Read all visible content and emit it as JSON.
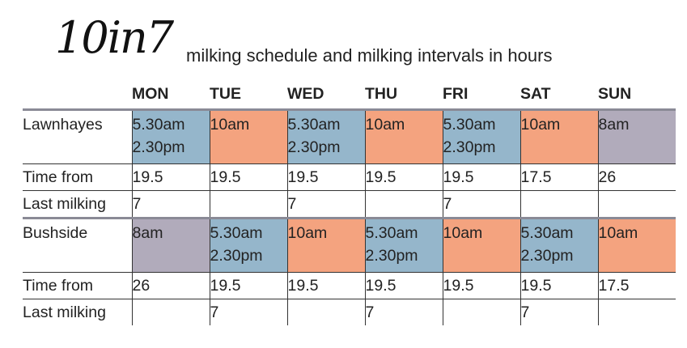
{
  "title": {
    "script": "10in7",
    "subtitle": "milking schedule and milking intervals in hours"
  },
  "days": [
    "MON",
    "TUE",
    "WED",
    "THU",
    "FRI",
    "SAT",
    "SUN"
  ],
  "farms": [
    {
      "name": "Lawnhayes",
      "schedule": [
        {
          "lines": [
            "5.30am",
            "2.30pm"
          ],
          "color": "#95b6cb"
        },
        {
          "lines": [
            "10am"
          ],
          "color": "#f4a37f"
        },
        {
          "lines": [
            "5.30am",
            "2.30pm"
          ],
          "color": "#95b6cb"
        },
        {
          "lines": [
            "10am"
          ],
          "color": "#f4a37f"
        },
        {
          "lines": [
            "5.30am",
            "2.30pm"
          ],
          "color": "#95b6cb"
        },
        {
          "lines": [
            "10am"
          ],
          "color": "#f4a37f"
        },
        {
          "lines": [
            "8am"
          ],
          "color": "#b1abbb"
        }
      ],
      "time_from_label": "Time from",
      "time_from": [
        "19.5",
        "19.5",
        "19.5",
        "19.5",
        "19.5",
        "17.5",
        "26"
      ],
      "last_milking_label": "Last milking",
      "last_milking": [
        "7",
        "",
        "7",
        "",
        "7",
        "",
        ""
      ]
    },
    {
      "name": "Bushside",
      "schedule": [
        {
          "lines": [
            "8am"
          ],
          "color": "#b1abbb"
        },
        {
          "lines": [
            "5.30am",
            "2.30pm"
          ],
          "color": "#95b6cb"
        },
        {
          "lines": [
            "10am"
          ],
          "color": "#f4a37f"
        },
        {
          "lines": [
            "5.30am",
            "2.30pm"
          ],
          "color": "#95b6cb"
        },
        {
          "lines": [
            "10am"
          ],
          "color": "#f4a37f"
        },
        {
          "lines": [
            "5.30am",
            "2.30pm"
          ],
          "color": "#95b6cb"
        },
        {
          "lines": [
            "10am"
          ],
          "color": "#f4a37f"
        }
      ],
      "time_from_label": "Time from",
      "time_from": [
        "26",
        "19.5",
        "19.5",
        "19.5",
        "19.5",
        "19.5",
        "17.5"
      ],
      "last_milking_label": "Last milking",
      "last_milking": [
        "",
        "7",
        "",
        "7",
        "",
        "7",
        ""
      ]
    }
  ]
}
